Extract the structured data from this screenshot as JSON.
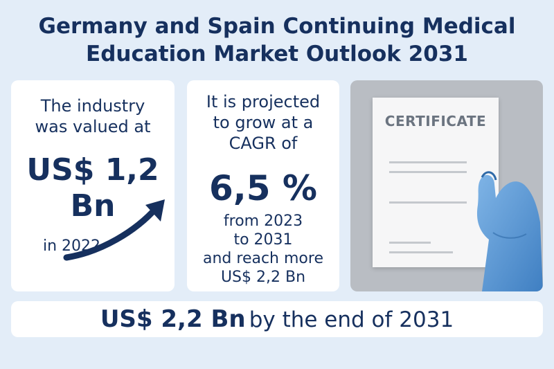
{
  "title": {
    "line1": "Germany and Spain Continuing Medical",
    "line2": "Education Market Outlook 2031"
  },
  "valuation_card": {
    "label_line1": "The industry",
    "label_line2": "was valued at",
    "value_line1": "US$ 1,2",
    "value_line2": "Bn",
    "year": "in 2022",
    "icon": "trend-arrow-icon"
  },
  "projection_card": {
    "label_line1": "It is projected",
    "label_line2": "to grow at a",
    "label_line3": "CAGR of",
    "cagr": "6,5 %",
    "from_line1": "from 2023",
    "from_line2": "to 2031",
    "reach_line1": "and reach more",
    "reach_line2": "US$ 2,2 Bn"
  },
  "image_card": {
    "certificate_text": "CERTIFICATE",
    "icon": "gloved-hand-icon"
  },
  "banner": {
    "value": "US$ 2,2 Bn",
    "suffix": "by the end of 2031"
  },
  "colors": {
    "background": "#e3edf8",
    "navy": "#16305e",
    "card": "#ffffff",
    "glove": "#5b9bd5"
  }
}
